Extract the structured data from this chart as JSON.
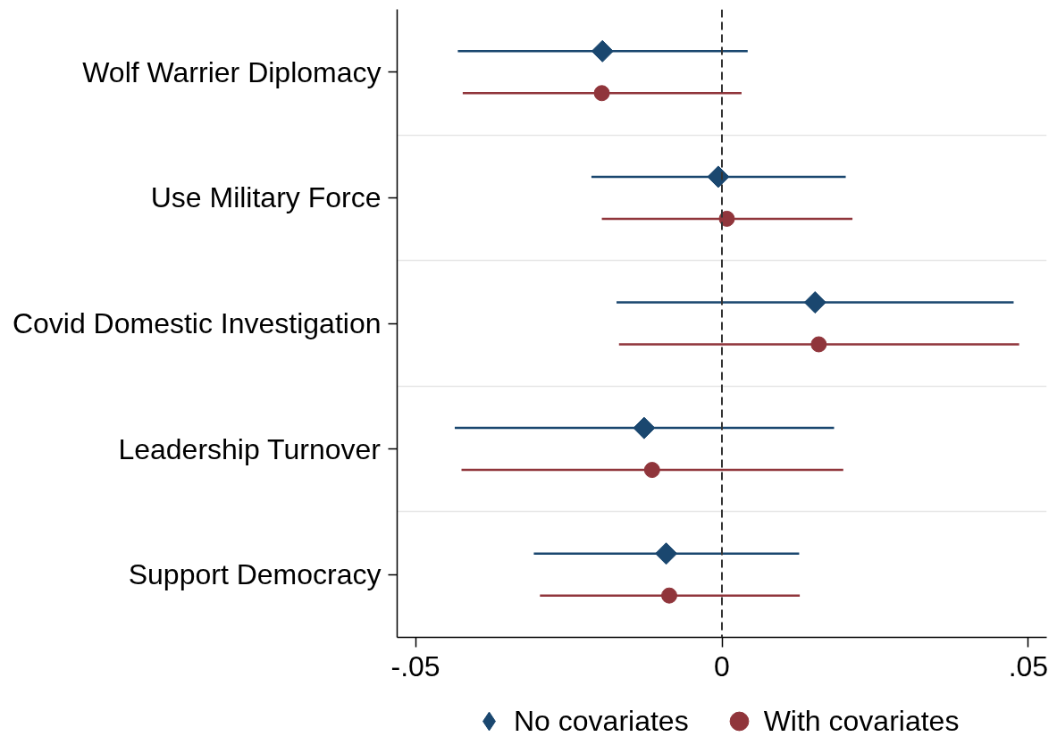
{
  "chart_data": {
    "type": "scatter",
    "orientation": "horizontal",
    "categories": [
      "Wolf Warrier Diplomacy",
      "Use Military Force",
      "Covid Domestic Investigation",
      "Leadership Turnover",
      "Support Democracy"
    ],
    "series": [
      {
        "name": "No covariates",
        "color": "#1a476f",
        "marker": "diamond",
        "values": [
          -0.0195,
          -0.0006,
          0.0152,
          -0.0127,
          -0.0091
        ],
        "errors": [
          [
            -0.0431,
            0.0042
          ],
          [
            -0.0213,
            0.0202
          ],
          [
            -0.0172,
            0.0476
          ],
          [
            -0.0436,
            0.0183
          ],
          [
            -0.0307,
            0.0126
          ]
        ]
      },
      {
        "name": "With covariates",
        "color": "#90353b",
        "marker": "circle",
        "values": [
          -0.0196,
          0.0008,
          0.0158,
          -0.0114,
          -0.0086
        ],
        "errors": [
          [
            -0.0423,
            0.0032
          ],
          [
            -0.0196,
            0.0213
          ],
          [
            -0.0168,
            0.0485
          ],
          [
            -0.0425,
            0.0198
          ],
          [
            -0.0297,
            0.0127
          ]
        ]
      }
    ],
    "xlim": [
      -0.053,
      0.053
    ],
    "xticks": [
      {
        "value": -0.05,
        "label": "-.05"
      },
      0,
      {
        "value": 0.05,
        "label": ".05"
      }
    ],
    "ref_lines": [
      {
        "axis": "x",
        "value": 0,
        "line_style": "dashed",
        "color": "#333333"
      }
    ],
    "grid": "y",
    "legend": "bottom"
  }
}
